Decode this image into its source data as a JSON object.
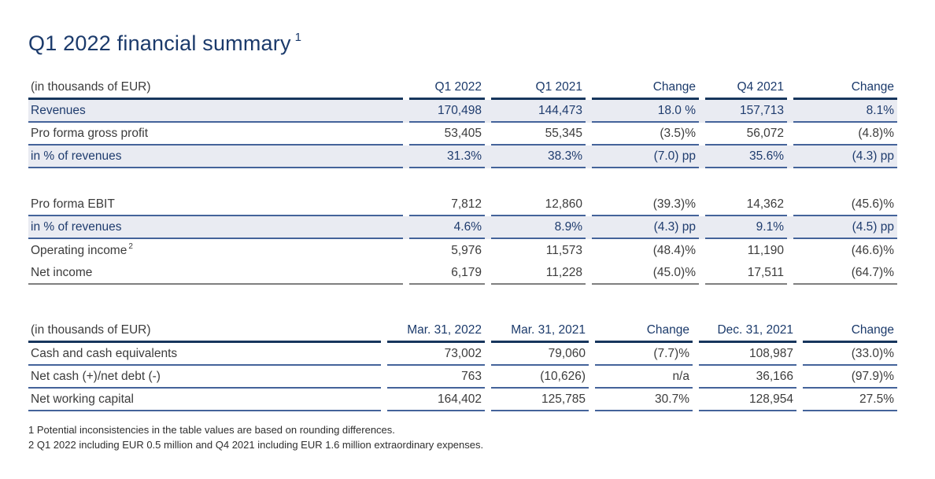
{
  "title": {
    "text": "Q1 2022 financial summary",
    "superscript": "1"
  },
  "colors": {
    "navy_heading": "#1b3a6b",
    "header_rule": "#17365d",
    "row_rule_blue": "#44639a",
    "table_end_gray": "#7f7f7f",
    "shaded_row_background": "#e9ebf2",
    "body_text": "#3c3c3c"
  },
  "tables": [
    {
      "name": "income-summary",
      "columns": [
        "(in thousands of EUR)",
        "Q1 2022",
        "Q1 2021",
        "Change",
        "Q4 2021",
        "Change"
      ],
      "rows": [
        {
          "label": "Revenues",
          "values": [
            "170,498",
            "144,473",
            "18.0 %",
            "157,713",
            "8.1%"
          ],
          "shaded": true,
          "border": "blue"
        },
        {
          "label": "Pro forma gross profit",
          "values": [
            "53,405",
            "55,345",
            "(3.5)%",
            "56,072",
            "(4.8)%"
          ],
          "shaded": false,
          "border": "blue"
        },
        {
          "label": "in % of revenues",
          "values": [
            "31.3%",
            "38.3%",
            "(7.0) pp",
            "35.6%",
            "(4.3) pp"
          ],
          "shaded": true,
          "border": "blue"
        },
        {
          "spacer": true
        },
        {
          "label": "Pro forma EBIT",
          "values": [
            "7,812",
            "12,860",
            "(39.3)%",
            "14,362",
            "(45.6)%"
          ],
          "shaded": false,
          "border": "blue"
        },
        {
          "label": "in % of revenues",
          "values": [
            "4.6%",
            "8.9%",
            "(4.3) pp",
            "9.1%",
            "(4.5) pp"
          ],
          "shaded": true,
          "border": "blue"
        },
        {
          "label": "Operating income",
          "label_superscript": "2",
          "values": [
            "5,976",
            "11,573",
            "(48.4)%",
            "11,190",
            "(46.6)%"
          ],
          "shaded": false,
          "border": "none"
        },
        {
          "label": "Net income",
          "values": [
            "6,179",
            "11,228",
            "(45.0)%",
            "17,511",
            "(64.7)%"
          ],
          "shaded": false,
          "border": "gray"
        }
      ]
    },
    {
      "name": "balance-items",
      "columns": [
        "(in thousands of EUR)",
        "Mar. 31, 2022",
        "Mar. 31, 2021",
        "Change",
        "Dec. 31, 2021",
        "Change"
      ],
      "rows": [
        {
          "label": "Cash and cash equivalents",
          "values": [
            "73,002",
            "79,060",
            "(7.7)%",
            "108,987",
            "(33.0)%"
          ],
          "shaded": false,
          "border": "blue"
        },
        {
          "label": "Net cash (+)/net debt (-)",
          "values": [
            "763",
            "(10,626)",
            "n/a",
            "36,166",
            "(97.9)%"
          ],
          "shaded": false,
          "border": "blue"
        },
        {
          "label": "Net working capital",
          "values": [
            "164,402",
            "125,785",
            "30.7%",
            "128,954",
            "27.5%"
          ],
          "shaded": false,
          "border": "blue"
        }
      ]
    }
  ],
  "footnotes": [
    "1 Potential inconsistencies in the table values are based on rounding differences.",
    "2 Q1 2022 including EUR 0.5 million and Q4 2021 including EUR 1.6 million extraordinary expenses."
  ]
}
